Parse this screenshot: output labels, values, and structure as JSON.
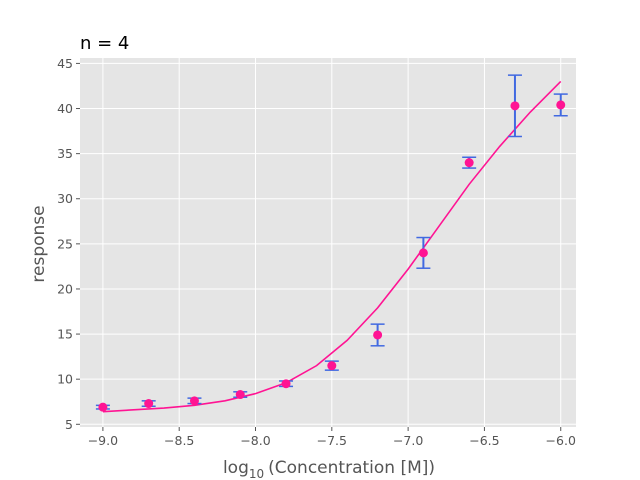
{
  "chart_data": {
    "type": "scatter",
    "title": "n = 4",
    "xlabel_prefix": "log",
    "xlabel_subscript": "10",
    "xlabel_suffix": "(Concentration [M])",
    "ylabel": "response",
    "xlim": [
      -9.15,
      -5.9
    ],
    "ylim": [
      4.7,
      45.6
    ],
    "xticks": [
      -9.0,
      -8.5,
      -8.0,
      -7.5,
      -7.0,
      -6.5,
      -6.0
    ],
    "xtick_labels": [
      "−9.0",
      "−8.5",
      "−8.0",
      "−7.5",
      "−7.0",
      "−6.5",
      "−6.0"
    ],
    "yticks": [
      5,
      10,
      15,
      20,
      25,
      30,
      35,
      40,
      45
    ],
    "ytick_labels": [
      "5",
      "10",
      "15",
      "20",
      "25",
      "30",
      "35",
      "40",
      "45"
    ],
    "grid": true,
    "colors": {
      "background": "#e5e5e5",
      "grid": "#ffffff",
      "points": "#ff1493",
      "errorbars": "#4169e1",
      "fit_line": "#ff1493"
    },
    "series": [
      {
        "type": "scatter",
        "x": [
          -9.0,
          -8.7,
          -8.4,
          -8.1,
          -7.8,
          -7.5,
          -7.2,
          -6.9,
          -6.6,
          -6.3,
          -6.0
        ],
        "y": [
          6.9,
          7.3,
          7.6,
          8.3,
          9.5,
          11.5,
          14.9,
          24.0,
          34.0,
          40.3,
          40.4
        ],
        "yerr": [
          0.2,
          0.3,
          0.3,
          0.3,
          0.3,
          0.5,
          1.2,
          1.7,
          0.6,
          3.4,
          1.2
        ]
      },
      {
        "type": "line",
        "x": [
          -9.0,
          -8.8,
          -8.6,
          -8.4,
          -8.2,
          -8.0,
          -7.8,
          -7.6,
          -7.4,
          -7.2,
          -7.0,
          -6.8,
          -6.6,
          -6.4,
          -6.2,
          -6.0
        ],
        "y": [
          6.4,
          6.6,
          6.8,
          7.1,
          7.6,
          8.4,
          9.6,
          11.5,
          14.3,
          17.9,
          22.2,
          26.9,
          31.6,
          35.8,
          39.6,
          43.0
        ]
      }
    ]
  }
}
